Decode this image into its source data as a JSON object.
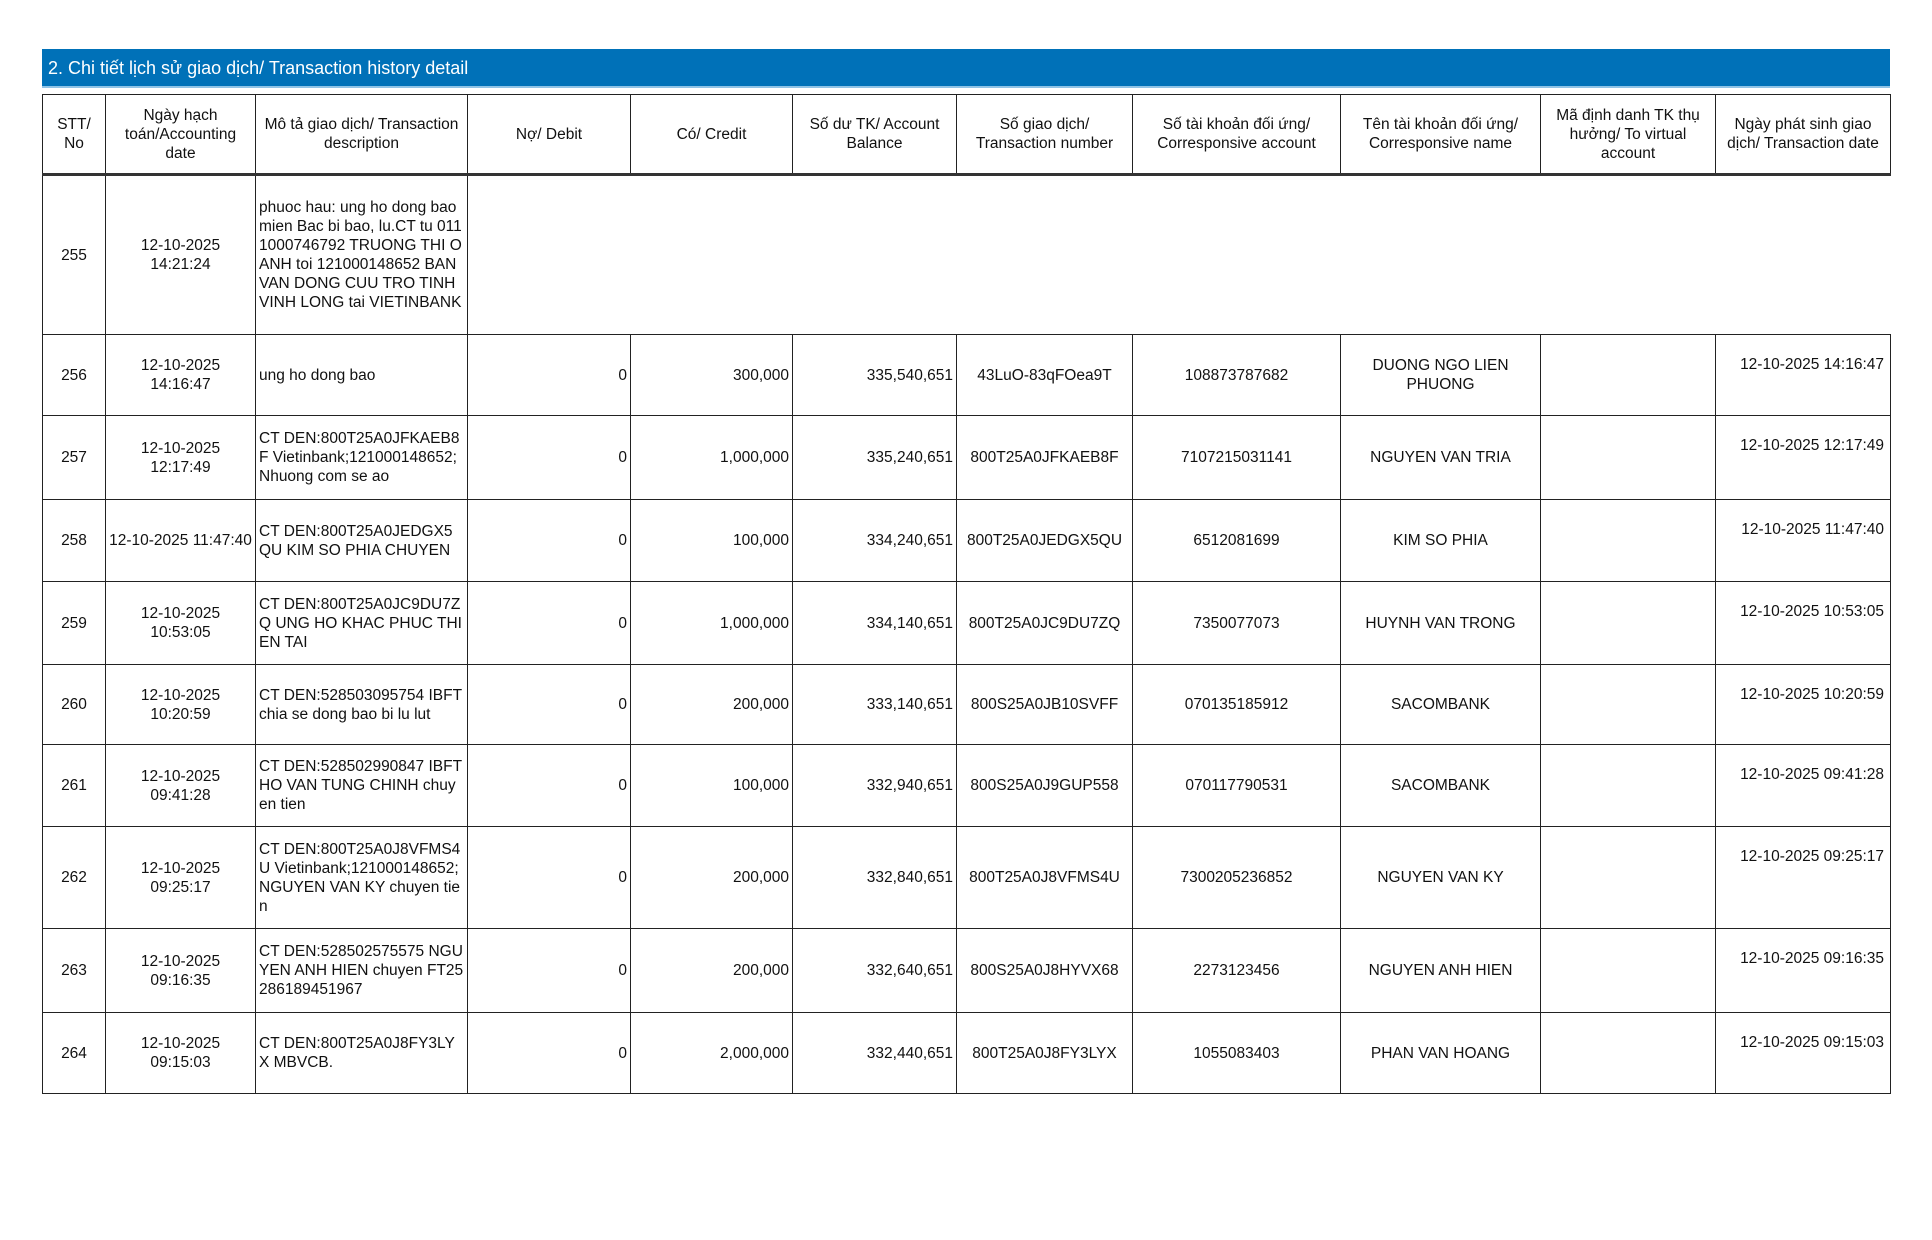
{
  "section_title": "2. Chi tiết lịch sử giao dịch/ Transaction history detail",
  "columns": [
    "STT/ No",
    "Ngày hạch toán/Accounting date",
    "Mô tả giao dịch/ Transaction description",
    "Nợ/ Debit",
    "Có/ Credit",
    "Số dư TK/ Account Balance",
    "Số giao dịch/ Transaction number",
    "Số tài khoản đối ứng/ Corresponsive account",
    "Tên tài khoản đối ứng/ Corresponsive name",
    "Mã định danh TK thụ hưởng/ To virtual account",
    "Ngày phát sinh giao dịch/ Transaction date"
  ],
  "rows": [
    {
      "no": "255",
      "acc_date": "12-10-2025 14:21:24",
      "desc": "phuoc hau: ung ho dong bao mien Bac bi bao, lu.CT tu 0111000746792 TRUONG THI OANH toi 121000148652 BAN VAN DONG CUU TRO TINH VINH LONG tai VIETINBANK",
      "debit": "",
      "credit": "",
      "balance": "",
      "txn_no": "",
      "corr_acc": "",
      "corr_name": "",
      "virtual_acc": "",
      "txn_date": "",
      "partial": true
    },
    {
      "no": "256",
      "acc_date": "12-10-2025 14:16:47",
      "desc": "ung ho dong bao",
      "debit": "0",
      "credit": "300,000",
      "balance": "335,540,651",
      "txn_no": "43LuO-83qFOea9T",
      "corr_acc": "108873787682",
      "corr_name": "DUONG NGO LIEN PHUONG",
      "virtual_acc": "",
      "txn_date": "12-10-2025 14:16:47"
    },
    {
      "no": "257",
      "acc_date": "12-10-2025 12:17:49",
      "desc": "CT DEN:800T25A0JFKAEB8F Vietinbank;121000148652; Nhuong com se ao",
      "debit": "0",
      "credit": "1,000,000",
      "balance": "335,240,651",
      "txn_no": "800T25A0JFKAEB8F",
      "corr_acc": "7107215031141",
      "corr_name": "NGUYEN VAN TRIA",
      "virtual_acc": "",
      "txn_date": "12-10-2025 12:17:49"
    },
    {
      "no": "258",
      "acc_date": "12-10-2025 11:47:40",
      "desc": "CT DEN:800T25A0JEDGX5QU KIM SO PHIA CHUYEN",
      "debit": "0",
      "credit": "100,000",
      "balance": "334,240,651",
      "txn_no": "800T25A0JEDGX5QU",
      "corr_acc": "6512081699",
      "corr_name": "KIM SO PHIA",
      "virtual_acc": "",
      "txn_date": "12-10-2025 11:47:40"
    },
    {
      "no": "259",
      "acc_date": "12-10-2025 10:53:05",
      "desc": "CT DEN:800T25A0JC9DU7ZQ UNG HO KHAC PHUC THIEN TAI",
      "debit": "0",
      "credit": "1,000,000",
      "balance": "334,140,651",
      "txn_no": "800T25A0JC9DU7ZQ",
      "corr_acc": "7350077073",
      "corr_name": "HUYNH VAN TRONG",
      "virtual_acc": "",
      "txn_date": "12-10-2025 10:53:05"
    },
    {
      "no": "260",
      "acc_date": "12-10-2025 10:20:59",
      "desc": "CT DEN:528503095754 IBFT chia se dong bao bi lu lut",
      "debit": "0",
      "credit": "200,000",
      "balance": "333,140,651",
      "txn_no": "800S25A0JB10SVFF",
      "corr_acc": "070135185912",
      "corr_name": "SACOMBANK",
      "virtual_acc": "",
      "txn_date": "12-10-2025 10:20:59"
    },
    {
      "no": "261",
      "acc_date": "12-10-2025 09:41:28",
      "desc": "CT DEN:528502990847 IBFT HO VAN TUNG CHINH chuyen tien",
      "debit": "0",
      "credit": "100,000",
      "balance": "332,940,651",
      "txn_no": "800S25A0J9GUP558",
      "corr_acc": "070117790531",
      "corr_name": "SACOMBANK",
      "virtual_acc": "",
      "txn_date": "12-10-2025 09:41:28"
    },
    {
      "no": "262",
      "acc_date": "12-10-2025 09:25:17",
      "desc": "CT DEN:800T25A0J8VFMS4U Vietinbank;121000148652; NGUYEN VAN KY chuyen tien",
      "debit": "0",
      "credit": "200,000",
      "balance": "332,840,651",
      "txn_no": "800T25A0J8VFMS4U",
      "corr_acc": "7300205236852",
      "corr_name": "NGUYEN VAN KY",
      "virtual_acc": "",
      "txn_date": "12-10-2025 09:25:17"
    },
    {
      "no": "263",
      "acc_date": "12-10-2025 09:16:35",
      "desc": "CT DEN:528502575575 NGUYEN ANH HIEN chuyen FT25286189451967",
      "debit": "0",
      "credit": "200,000",
      "balance": "332,640,651",
      "txn_no": "800S25A0J8HYVX68",
      "corr_acc": "2273123456",
      "corr_name": "NGUYEN ANH HIEN",
      "virtual_acc": "",
      "txn_date": "12-10-2025 09:16:35"
    },
    {
      "no": "264",
      "acc_date": "12-10-2025 09:15:03",
      "desc": "CT DEN:800T25A0J8FY3LYX MBVCB.",
      "debit": "0",
      "credit": "2,000,000",
      "balance": "332,440,651",
      "txn_no": "800T25A0J8FY3LYX",
      "corr_acc": "1055083403",
      "corr_name": "PHAN VAN HOANG",
      "virtual_acc": "",
      "txn_date": "12-10-2025 09:15:03"
    }
  ],
  "colors": {
    "header_bar": "#0071b8",
    "header_text": "#ffffff",
    "border": "#222222"
  }
}
